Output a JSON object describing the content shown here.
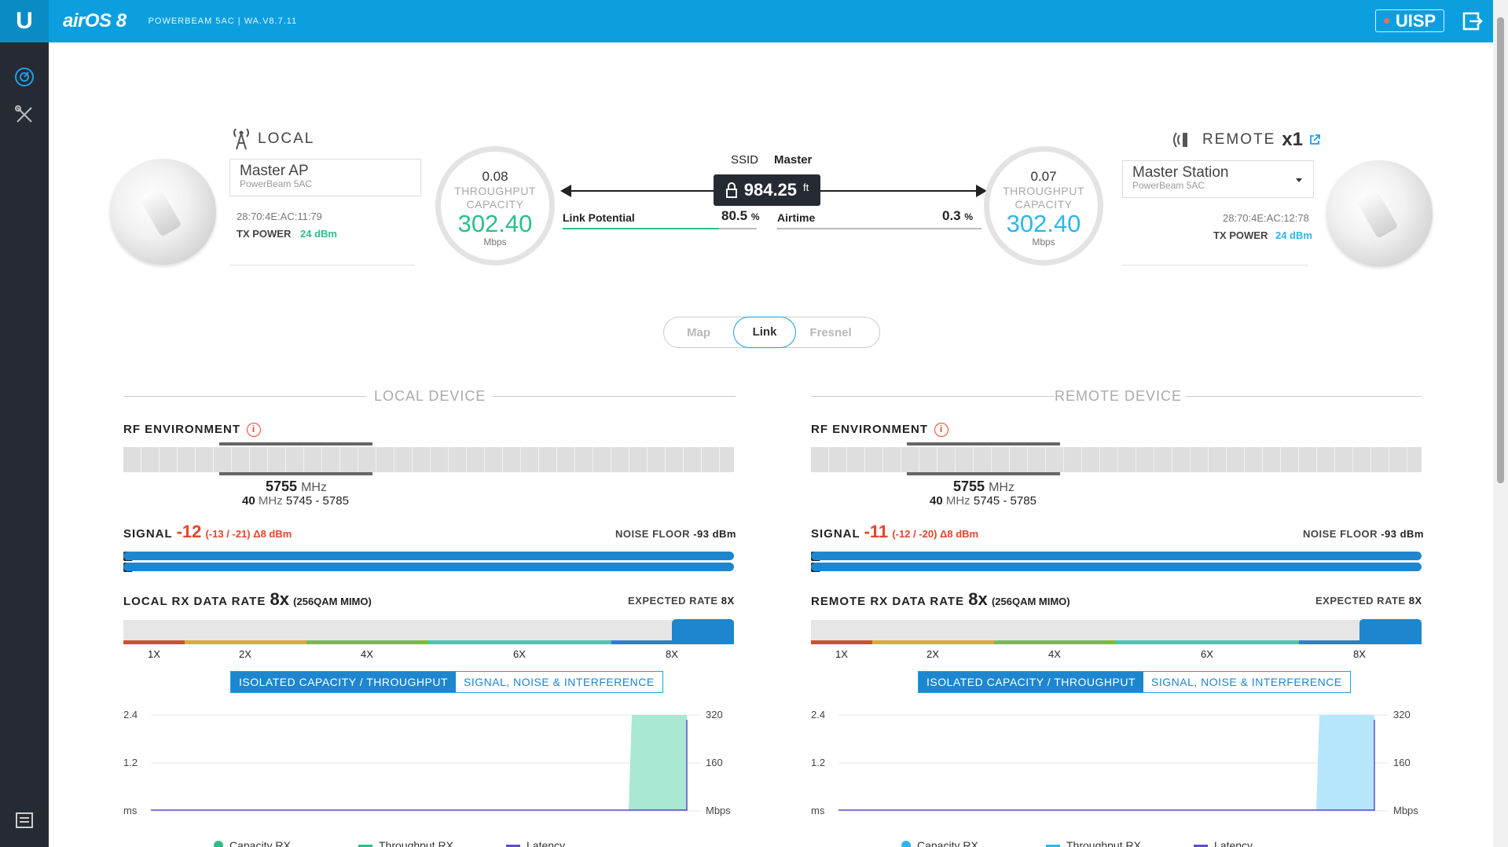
{
  "header": {
    "logo": "U",
    "brand": "airOS 8",
    "product": "POWERBEAM 5AC | WA.V8.7.11",
    "uisp_label": "UISP"
  },
  "colors": {
    "header_blue": "#0b9fe0",
    "local_green": "#2bbf8a",
    "remote_blue": "#2cb6ee",
    "signal_red": "#e8432b",
    "bar_blue": "#1d86cf"
  },
  "local": {
    "title": "LOCAL",
    "device_name": "Master AP",
    "device_model": "PowerBeam 5AC",
    "mac": "28:70:4E:AC:11:79",
    "tx_power_label": "TX POWER",
    "tx_power_value": "24 dBm",
    "throughput": "0.08",
    "throughput_label": "THROUGHPUT",
    "capacity_label": "CAPACITY",
    "capacity": "302.40",
    "unit": "Mbps"
  },
  "remote": {
    "title": "REMOTE",
    "count": "x1",
    "device_name": "Master Station",
    "device_model": "PowerBeam 5AC",
    "mac": "28:70:4E:AC:12:78",
    "tx_power_label": "TX POWER",
    "tx_power_value": "24 dBm",
    "throughput": "0.07",
    "throughput_label": "THROUGHPUT",
    "capacity_label": "CAPACITY",
    "capacity": "302.40",
    "unit": "Mbps"
  },
  "link": {
    "ssid_label": "SSID",
    "ssid_value": "Master",
    "distance": "984.25",
    "distance_unit": "ft",
    "link_potential_label": "Link Potential",
    "link_potential_value": "80.5",
    "airtime_label": "Airtime",
    "airtime_value": "0.3",
    "percent": "%",
    "link_potential_fraction": 0.805,
    "airtime_fraction": 0.003
  },
  "tabs": [
    "Map",
    "Link",
    "Fresnel"
  ],
  "local_device": {
    "section": "LOCAL DEVICE",
    "rf_label": "RF ENVIRONMENT",
    "freq": "5755",
    "freq_unit": "MHz",
    "width": "40",
    "width_unit": "MHz",
    "range": "5745 - 5785",
    "signal_label": "SIGNAL",
    "signal": "-12",
    "signal_detail": "(-13 / -21) Δ8 dBm",
    "noise_label": "NOISE FLOOR",
    "noise_value": "-93 dBm",
    "chains": [
      "0",
      "1"
    ],
    "rate_label": "LOCAL RX DATA RATE",
    "rate": "8x",
    "rate_detail": "(256QAM MIMO)",
    "expected_label": "EXPECTED RATE",
    "expected_value": "8X",
    "rate_ticks": [
      "1X",
      "2X",
      "4X",
      "6X",
      "8X"
    ],
    "toggle_on": "ISOLATED CAPACITY / THROUGHPUT",
    "toggle_off": "SIGNAL, NOISE & INTERFERENCE",
    "y_left": [
      "2.4",
      "1.2",
      "ms"
    ],
    "y_right": [
      "320",
      "160",
      "Mbps"
    ],
    "legend": [
      "Capacity RX",
      "Throughput RX",
      "Latency"
    ]
  },
  "remote_device": {
    "section": "REMOTE DEVICE",
    "rf_label": "RF ENVIRONMENT",
    "freq": "5755",
    "freq_unit": "MHz",
    "width": "40",
    "width_unit": "MHz",
    "range": "5745 - 5785",
    "signal_label": "SIGNAL",
    "signal": "-11",
    "signal_detail": "(-12 / -20) Δ8 dBm",
    "noise_label": "NOISE FLOOR",
    "noise_value": "-93 dBm",
    "chains": [
      "0",
      "1"
    ],
    "rate_label": "REMOTE RX DATA RATE",
    "rate": "8x",
    "rate_detail": "(256QAM MIMO)",
    "expected_label": "EXPECTED RATE",
    "expected_value": "8X",
    "rate_ticks": [
      "1X",
      "2X",
      "4X",
      "6X",
      "8X"
    ],
    "toggle_on": "ISOLATED CAPACITY / THROUGHPUT",
    "toggle_off": "SIGNAL, NOISE & INTERFERENCE",
    "y_left": [
      "2.4",
      "1.2",
      "ms"
    ],
    "y_right": [
      "320",
      "160",
      "Mbps"
    ],
    "legend": [
      "Capacity RX",
      "Throughput RX",
      "Latency"
    ]
  }
}
